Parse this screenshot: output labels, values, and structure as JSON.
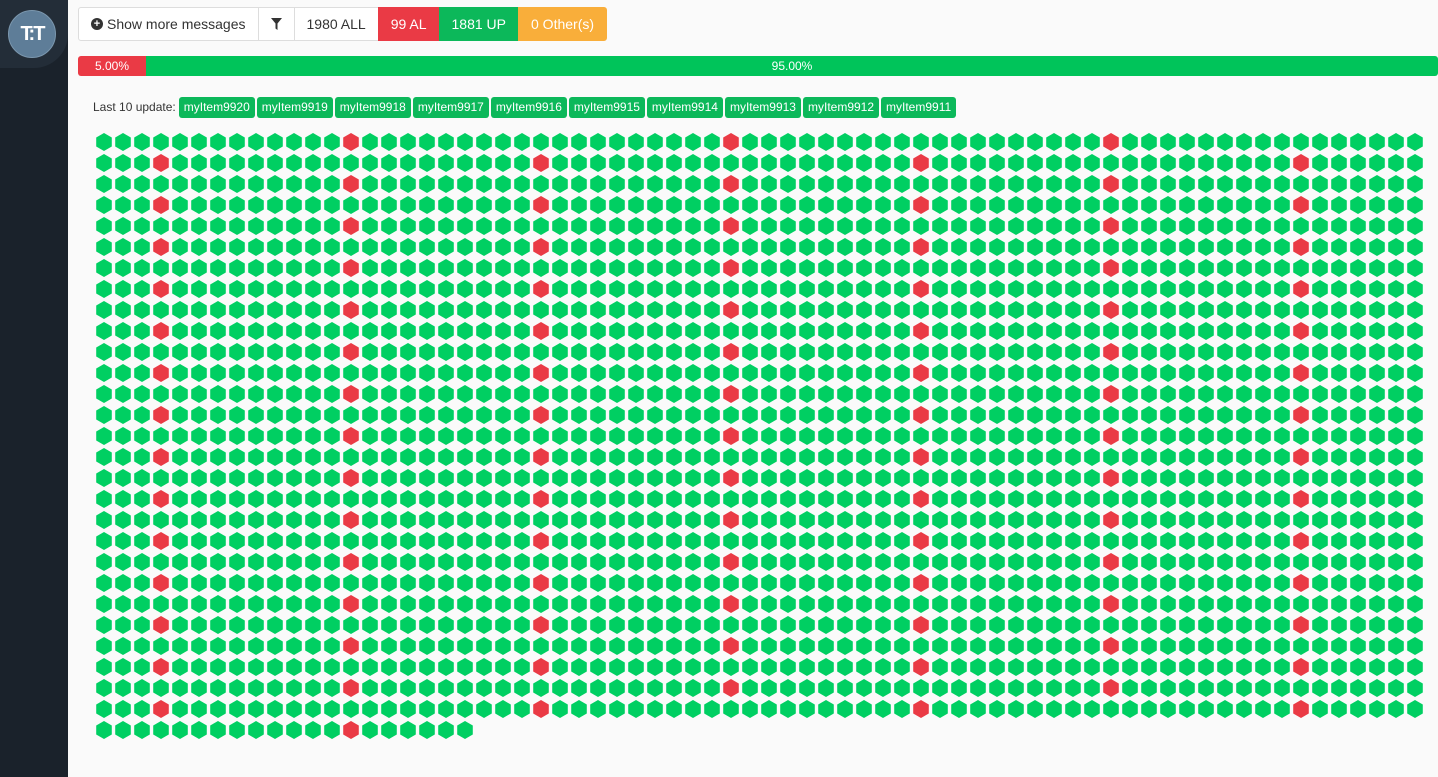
{
  "sidebar": {
    "logo_text": "T:T"
  },
  "toolbar": {
    "show_more_label": "Show more messages",
    "filter_icon": "filter-icon",
    "all_label": "1980 ALL",
    "al_label": "99 AL",
    "up_label": "1881 UP",
    "other_label": "0 Other(s)"
  },
  "progress": {
    "alert_label": "5.00%",
    "alert_fraction": 0.05,
    "up_label": "95.00%",
    "up_fraction": 0.95
  },
  "last_update": {
    "label": "Last 10 update:",
    "items": [
      "myItem9920",
      "myItem9919",
      "myItem9918",
      "myItem9917",
      "myItem9916",
      "myItem9915",
      "myItem9914",
      "myItem9913",
      "myItem9912",
      "myItem9911"
    ]
  },
  "grid": {
    "total": 1980,
    "alert_count": 99,
    "up_count": 1881,
    "other_count": 0,
    "colors": {
      "up": "#00cf62",
      "alert": "#ea3a45",
      "other": "#f9ae3a"
    }
  }
}
